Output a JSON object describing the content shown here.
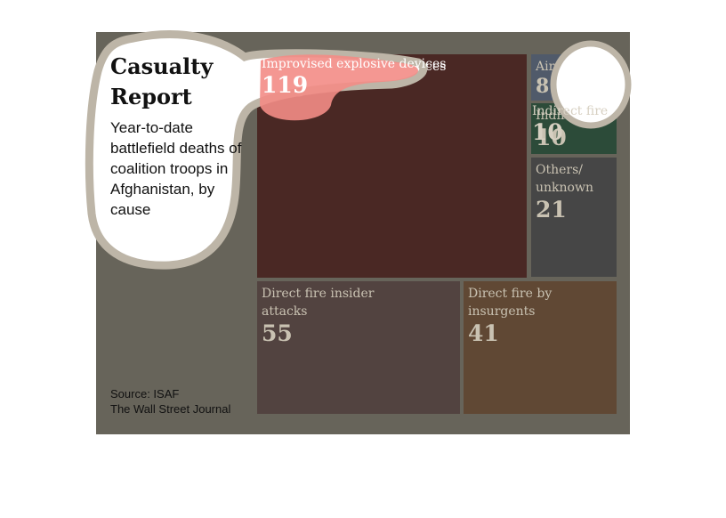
{
  "chart_data": {
    "type": "treemap",
    "title": "Casualty Report",
    "subtitle": "Year-to-date battlefield deaths of coalition troops in Afghanistan, by cause",
    "items": [
      {
        "label": "Improvised explosive devices",
        "value": 119,
        "color": "#4a2824"
      },
      {
        "label": "Air crash",
        "value": 8,
        "color": "#505a6a"
      },
      {
        "label": "Indirect fire",
        "value": 10,
        "color": "#2c4b39"
      },
      {
        "label": "Others/ unknown",
        "value": 21,
        "color": "#464646"
      },
      {
        "label": "Direct fire insider attacks",
        "value": 55,
        "color": "#524340"
      },
      {
        "label": "Direct fire by insurgents",
        "value": 41,
        "color": "#604834"
      }
    ]
  },
  "source": {
    "line1": "Source: ISAF",
    "line2": "The Wall Street Journal"
  },
  "colors": {
    "panel_background": "#67645a",
    "bubble_fill": "#ffffff",
    "bubble_outline": "#bdb5a7",
    "ied_highlight": "#f38c86",
    "top_right_highlight": "#ffffff"
  }
}
